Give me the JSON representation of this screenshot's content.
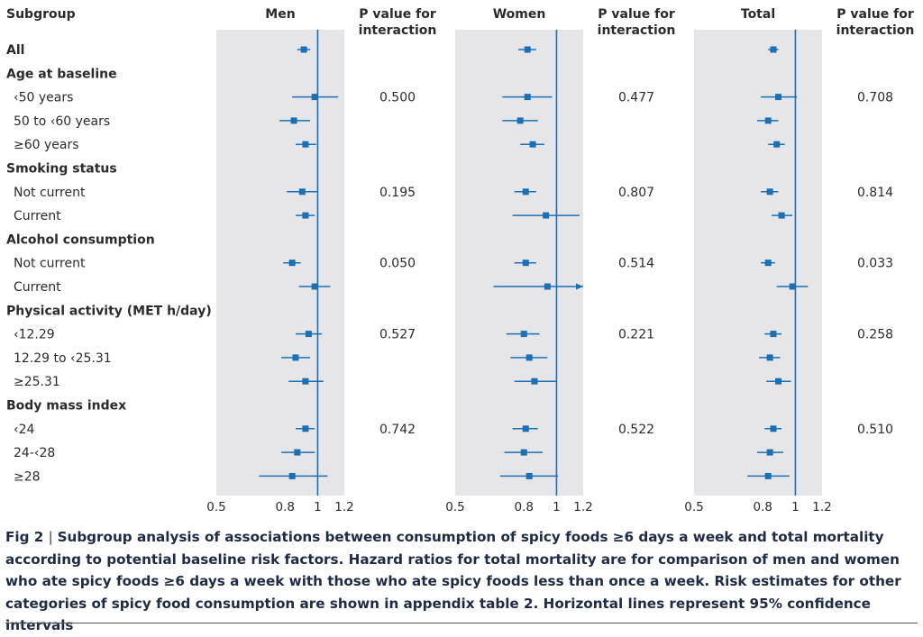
{
  "figure_label": "Fig 2",
  "caption": "Subgroup analysis of associations between consumption of spicy foods ≥6 days a week and total mortality according to potential baseline risk factors. Hazard ratios for total mortality are for comparison of men and women who ate spicy foods ≥6 days a week with those who ate spicy foods less than once a week. Risk estimates for other categories of spicy food consumption are shown in appendix table 2. Horizontal lines represent 95% confidence intervals",
  "colors": {
    "marker": "#1a6fb5",
    "panel_bg": "#e6e6e8",
    "ref_line": "#1a6fb5",
    "text": "#2b2b2b"
  },
  "chart_data": {
    "type": "forest",
    "subgroup_header": "Subgroup",
    "pvalue_header": "P value for interaction",
    "xaxis": {
      "scale": "log",
      "ticks": [
        0.5,
        0.8,
        1,
        1.2
      ],
      "tick_labels": [
        "0.5",
        "0.8",
        "1",
        "1.2"
      ],
      "range": [
        0.5,
        1.2
      ],
      "reference": 1
    },
    "rows": [
      {
        "label": "All",
        "type": "header"
      },
      {
        "label": "Age at baseline",
        "type": "category"
      },
      {
        "label": "‹50 years",
        "type": "item"
      },
      {
        "label": "50 to ‹60 years",
        "type": "item"
      },
      {
        "label": "≥60 years",
        "type": "item"
      },
      {
        "label": "Smoking status",
        "type": "category"
      },
      {
        "label": "Not current",
        "type": "item"
      },
      {
        "label": "Current",
        "type": "item"
      },
      {
        "label": "Alcohol consumption",
        "type": "category"
      },
      {
        "label": "Not current",
        "type": "item"
      },
      {
        "label": "Current",
        "type": "item"
      },
      {
        "label": "Physical activity (MET h/day)",
        "type": "category"
      },
      {
        "label": "‹12.29",
        "type": "item"
      },
      {
        "label": "12.29 to ‹25.31",
        "type": "item"
      },
      {
        "label": "≥25.31",
        "type": "item"
      },
      {
        "label": "Body mass index",
        "type": "category"
      },
      {
        "label": "‹24",
        "type": "item"
      },
      {
        "label": "24-‹28",
        "type": "item"
      },
      {
        "label": "≥28",
        "type": "item"
      }
    ],
    "panels": [
      {
        "title": "Men",
        "pvalues": {
          "2": "0.500",
          "6": "0.195",
          "9": "0.050",
          "12": "0.527",
          "16": "0.742"
        },
        "estimates": {
          "0": [
            0.91,
            0.87,
            0.95
          ],
          "2": [
            0.98,
            0.84,
            1.15
          ],
          "3": [
            0.85,
            0.77,
            0.95
          ],
          "4": [
            0.92,
            0.86,
            0.99
          ],
          "6": [
            0.9,
            0.81,
            1.0
          ],
          "7": [
            0.92,
            0.86,
            0.98
          ],
          "9": [
            0.84,
            0.79,
            0.89
          ],
          "10": [
            0.98,
            0.88,
            1.09
          ],
          "12": [
            0.94,
            0.86,
            1.03
          ],
          "13": [
            0.86,
            0.78,
            0.95
          ],
          "14": [
            0.92,
            0.82,
            1.04
          ],
          "16": [
            0.92,
            0.86,
            0.98
          ],
          "17": [
            0.87,
            0.78,
            0.98
          ],
          "18": [
            0.84,
            0.67,
            1.07
          ]
        }
      },
      {
        "title": "Women",
        "pvalues": {
          "2": "0.477",
          "6": "0.807",
          "9": "0.514",
          "12": "0.221",
          "16": "0.522"
        },
        "estimates": {
          "0": [
            0.82,
            0.77,
            0.87
          ],
          "2": [
            0.82,
            0.69,
            0.97
          ],
          "3": [
            0.78,
            0.69,
            0.88
          ],
          "4": [
            0.85,
            0.78,
            0.92
          ],
          "6": [
            0.81,
            0.75,
            0.87
          ],
          "7": [
            0.93,
            0.74,
            1.17
          ],
          "9": [
            0.81,
            0.75,
            0.87
          ],
          "10": [
            0.94,
            0.65,
            1.25,
            "arrow"
          ],
          "12": [
            0.8,
            0.71,
            0.89
          ],
          "13": [
            0.83,
            0.73,
            0.94
          ],
          "14": [
            0.86,
            0.75,
            1.0
          ],
          "16": [
            0.81,
            0.74,
            0.88
          ],
          "17": [
            0.8,
            0.7,
            0.91
          ],
          "18": [
            0.83,
            0.68,
            1.01
          ]
        }
      },
      {
        "title": "Total",
        "pvalues": {
          "2": "0.708",
          "6": "0.814",
          "9": "0.033",
          "12": "0.258",
          "16": "0.510"
        },
        "estimates": {
          "0": [
            0.86,
            0.83,
            0.89
          ],
          "2": [
            0.89,
            0.79,
            1.01
          ],
          "3": [
            0.83,
            0.77,
            0.89
          ],
          "4": [
            0.88,
            0.83,
            0.93
          ],
          "6": [
            0.84,
            0.79,
            0.89
          ],
          "7": [
            0.91,
            0.85,
            0.98
          ],
          "9": [
            0.83,
            0.79,
            0.87
          ],
          "10": [
            0.98,
            0.88,
            1.09
          ],
          "12": [
            0.86,
            0.81,
            0.91
          ],
          "13": [
            0.84,
            0.78,
            0.9
          ],
          "14": [
            0.89,
            0.82,
            0.97
          ],
          "16": [
            0.86,
            0.81,
            0.91
          ],
          "17": [
            0.84,
            0.77,
            0.92
          ],
          "18": [
            0.83,
            0.72,
            0.96
          ]
        }
      }
    ]
  }
}
